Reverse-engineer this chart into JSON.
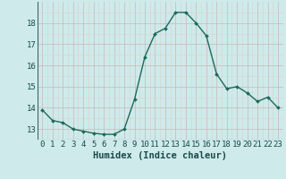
{
  "x": [
    0,
    1,
    2,
    3,
    4,
    5,
    6,
    7,
    8,
    9,
    10,
    11,
    12,
    13,
    14,
    15,
    16,
    17,
    18,
    19,
    20,
    21,
    22,
    23
  ],
  "y": [
    13.9,
    13.4,
    13.3,
    13.0,
    12.9,
    12.8,
    12.75,
    12.75,
    13.0,
    14.4,
    16.4,
    17.5,
    17.75,
    18.5,
    18.5,
    18.0,
    17.4,
    15.6,
    14.9,
    15.0,
    14.7,
    14.3,
    14.5,
    14.0
  ],
  "line_color": "#1a6b5a",
  "marker": "D",
  "marker_size": 2.0,
  "linewidth": 1.0,
  "xlabel": "Humidex (Indice chaleur)",
  "xlabel_fontsize": 7.5,
  "ylabel_ticks": [
    13,
    14,
    15,
    16,
    17,
    18
  ],
  "xlim": [
    -0.5,
    23.5
  ],
  "ylim": [
    12.5,
    19.0
  ],
  "background_color": "#ceeaea",
  "grid_color_major": "#c8b8b8",
  "grid_color_minor": "#ddd0d0",
  "tick_fontsize": 6.5
}
